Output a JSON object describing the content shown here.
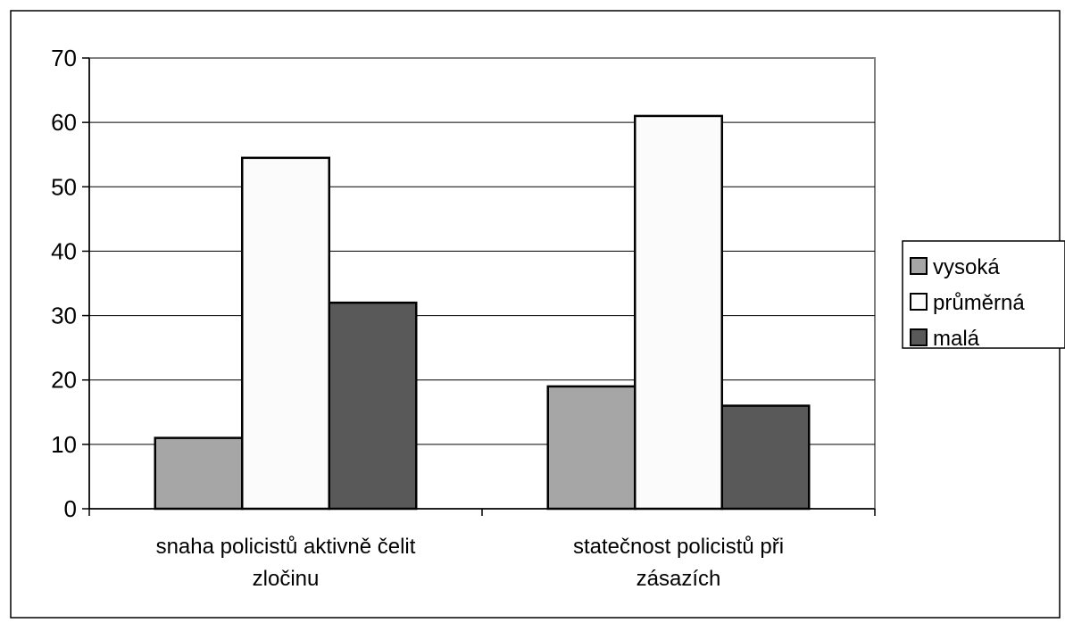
{
  "chart_data": {
    "type": "bar",
    "categories": [
      [
        "snaha policistů aktivně čelit",
        "zločinu"
      ],
      [
        "statečnost policistů při",
        "zásazích"
      ]
    ],
    "series": [
      {
        "name": "vysoká",
        "values": [
          11,
          19
        ],
        "color": "#a6a6a6"
      },
      {
        "name": "průměrná",
        "values": [
          54.5,
          61
        ],
        "color": "#fbfbfb"
      },
      {
        "name": "malá",
        "values": [
          32,
          16
        ],
        "color": "#595959"
      }
    ],
    "ylim": [
      0,
      70
    ],
    "yticks": [
      0,
      10,
      20,
      30,
      40,
      50,
      60,
      70
    ],
    "grid": true,
    "legend_position": "right",
    "title": "",
    "xlabel": "",
    "ylabel": ""
  }
}
